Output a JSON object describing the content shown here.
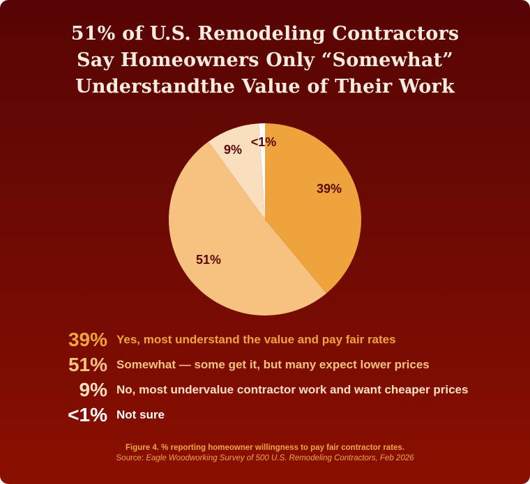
{
  "title": {
    "lines": [
      "51% of U.S. Remodeling Contractors",
      "Say Homeowners Only “Somewhat”",
      "Understandthe Value of Their Work"
    ]
  },
  "colors": {
    "background_top": "#570404",
    "background_bottom": "#8a1000",
    "title_text": "#f5ecdf",
    "slice_label": "#5a0808"
  },
  "chart_data": {
    "type": "pie",
    "title": "51% of U.S. Remodeling Contractors Say Homeowners Only “Somewhat” Understandthe Value of Their Work",
    "start_angle": "12 o'clock, clockwise",
    "categories": [
      "Yes, most understand the value and pay fair rates",
      "Somewhat — some get it, but many expect lower prices",
      "No, most undervalue contractor work and want cheaper prices",
      "Not sure"
    ],
    "values": [
      39,
      51,
      9,
      1
    ],
    "labels": [
      "39%",
      "51%",
      "9%",
      "<1%"
    ],
    "colors": [
      "#eea33c",
      "#f5c37f",
      "#f9dfbe",
      "#ffffff"
    ],
    "legend_position": "bottom"
  },
  "legend": {
    "items": [
      {
        "pct": "39%",
        "text": "Yes, most understand the value and pay fair rates",
        "pct_color": "#f0a43e",
        "text_color": "#f0a43e"
      },
      {
        "pct": "51%",
        "text": "Somewhat — some get it, but many expect lower prices",
        "pct_color": "#f5c37f",
        "text_color": "#f5c37f"
      },
      {
        "pct": "9%",
        "text": "No, most undervalue contractor work and want cheaper prices",
        "pct_color": "#fadfc0",
        "text_color": "#fadfc0"
      },
      {
        "pct": "<1%",
        "text": "Not sure",
        "pct_color": "#ffffff",
        "text_color": "#ffffff"
      }
    ]
  },
  "caption": {
    "figure": "Figure 4. % reporting homeowner willingness to pay fair contractor rates.",
    "source_prefix": "Source: ",
    "source_title": "Eagle Woodworking Survey of 500 U.S. Remodeling Contractors, Feb 2026"
  }
}
